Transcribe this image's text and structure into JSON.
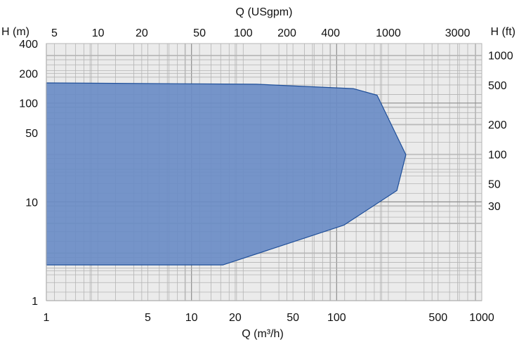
{
  "chart_data": {
    "type": "area",
    "title": "",
    "xlabel": "Q (m³/h)",
    "ylabel": "H (m)",
    "x2label": "Q (USgpm)",
    "y2label": "H (ft)",
    "xscale": "log",
    "yscale": "log",
    "xlim": [
      1,
      1000
    ],
    "ylim": [
      1,
      400
    ],
    "grid": true,
    "legend": "none",
    "colors": {
      "plot_background": "#ebebeb",
      "grid": "#b4b4b4",
      "fill": "#6a8cc6",
      "outline": "#1f4f99"
    },
    "x_ticks": [
      "1",
      "5",
      "10",
      "20",
      "50",
      "100",
      "500",
      "1000"
    ],
    "y_ticks": [
      "1",
      "10",
      "50",
      "100",
      "200",
      "400"
    ],
    "x2_ticks": [
      "5",
      "10",
      "20",
      "50",
      "100",
      "200",
      "400",
      "1000",
      "3000"
    ],
    "y2_ticks": [
      "30",
      "50",
      "100",
      "200",
      "500",
      "1000"
    ],
    "series": [
      {
        "x": [
          1,
          28,
          130,
          190,
          300,
          260,
          112,
          16.5,
          1,
          1
        ],
        "y": [
          160,
          155,
          140,
          120,
          30,
          13,
          5.8,
          2.3,
          2.3,
          160
        ]
      }
    ]
  }
}
